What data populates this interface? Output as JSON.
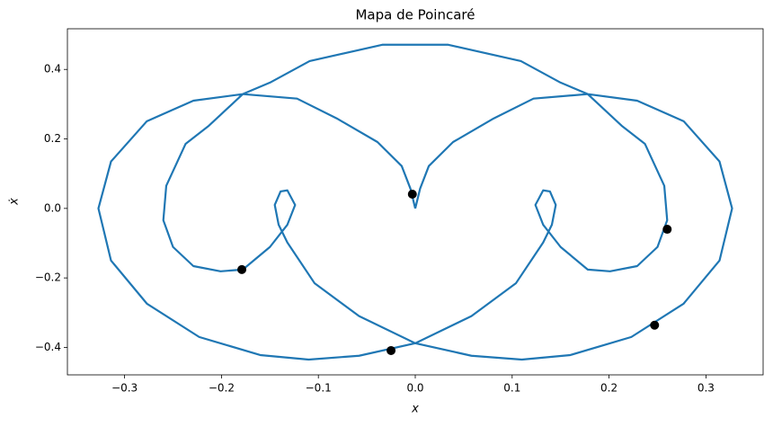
{
  "chart_data": {
    "type": "line",
    "title": "Mapa de Poincaré",
    "xlabel": "x",
    "ylabel": "ẋ",
    "xlim": [
      -0.359,
      0.359
    ],
    "ylim": [
      -0.479,
      0.517
    ],
    "xticks": [
      {
        "value": -0.3,
        "label": "−0.3"
      },
      {
        "value": -0.2,
        "label": "−0.2"
      },
      {
        "value": -0.1,
        "label": "−0.1"
      },
      {
        "value": 0,
        "label": "0.0"
      },
      0.1,
      0.2,
      0.3
    ],
    "yticks": [
      {
        "value": -0.4,
        "label": "−0.4"
      },
      {
        "value": -0.2,
        "label": "−0.2"
      },
      {
        "value": 0,
        "label": "0.0"
      },
      0.2,
      0.4
    ],
    "grid": false,
    "series": [
      {
        "type": "line",
        "color": "#1f77b4",
        "x": [
          0,
          -0.005,
          -0.014,
          -0.039,
          -0.081,
          -0.122,
          -0.178,
          -0.213,
          -0.237,
          -0.257,
          -0.26,
          -0.25,
          -0.229,
          -0.201,
          -0.178,
          -0.15,
          -0.132,
          -0.124,
          -0.132,
          -0.139,
          -0.145,
          -0.141,
          -0.132,
          -0.104,
          -0.058,
          0,
          0.058,
          0.11,
          0.16,
          0.223,
          0.277,
          0.314,
          0.327,
          0.314,
          0.277,
          0.229,
          0.178,
          0.15,
          0.109,
          0.034,
          -0.034,
          -0.109,
          -0.15,
          -0.178,
          -0.229,
          -0.277,
          -0.314,
          -0.327,
          -0.314,
          -0.277,
          -0.223,
          -0.16,
          -0.11,
          -0.058,
          0,
          0.058,
          0.104,
          0.132,
          0.141,
          0.145,
          0.139,
          0.132,
          0.124,
          0.132,
          0.15,
          0.178,
          0.201,
          0.229,
          0.25,
          0.26,
          0.257,
          0.237,
          0.213,
          0.178,
          0.122,
          0.081,
          0.039,
          0.014,
          0.005,
          0
        ],
        "values": [
          0,
          0.057,
          0.122,
          0.191,
          0.259,
          0.316,
          0.329,
          0.238,
          0.186,
          0.065,
          -0.034,
          -0.111,
          -0.166,
          -0.181,
          -0.176,
          -0.111,
          -0.047,
          0.01,
          0.052,
          0.049,
          0.01,
          -0.047,
          -0.098,
          -0.215,
          -0.31,
          -0.388,
          -0.424,
          -0.435,
          -0.422,
          -0.37,
          -0.274,
          -0.15,
          0,
          0.135,
          0.251,
          0.31,
          0.329,
          0.362,
          0.424,
          0.471,
          0.471,
          0.424,
          0.362,
          0.329,
          0.31,
          0.251,
          0.135,
          0,
          -0.15,
          -0.274,
          -0.37,
          -0.422,
          -0.435,
          -0.424,
          -0.388,
          -0.31,
          -0.215,
          -0.098,
          -0.047,
          0.01,
          0.049,
          0.052,
          0.01,
          -0.047,
          -0.111,
          -0.176,
          -0.181,
          -0.166,
          -0.111,
          -0.034,
          0.065,
          0.186,
          0.238,
          0.329,
          0.316,
          0.259,
          0.191,
          0.122,
          0.057,
          0
        ]
      },
      {
        "type": "scatter",
        "color": "#000000",
        "x": [
          -0.003,
          0.26,
          0.247,
          -0.025,
          -0.179
        ],
        "values": [
          0.041,
          -0.06,
          -0.336,
          -0.409,
          -0.176
        ]
      }
    ]
  }
}
